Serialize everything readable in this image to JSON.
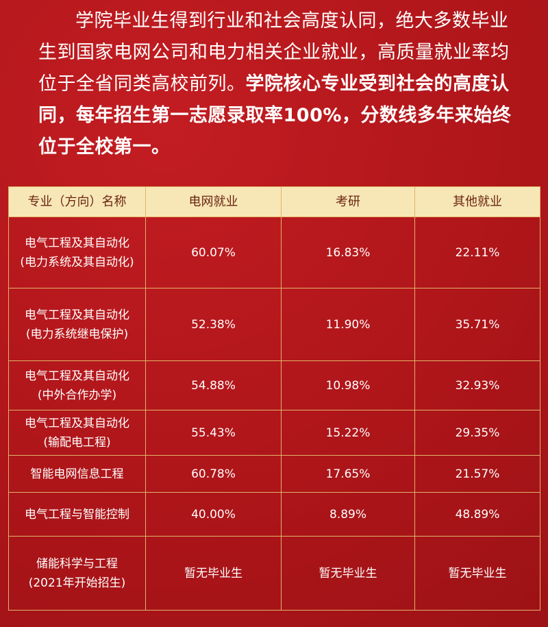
{
  "paragraph": {
    "normal": "学院毕业生得到行业和社会高度认同，绝大多数毕业生到国家电网公司和电力相关企业就业，高质量就业率均位于全省同类高校前列。",
    "bold": "学院核心专业受到社会的高度认同，每年招生第一志愿录取率100%，分数线多年来始终位于全校第一。"
  },
  "table": {
    "header": [
      "专业（方向）名称",
      "电网就业",
      "考研",
      "其他就业"
    ],
    "rows": [
      [
        [
          "电气工程及其自动化",
          "(电力系统及其自动化)"
        ],
        "60.07%",
        "16.83%",
        "22.11%"
      ],
      [
        [
          "电气工程及其自动化",
          "(电力系统继电保护)"
        ],
        "52.38%",
        "11.90%",
        "35.71%"
      ],
      [
        [
          "电气工程及其自动化",
          "(中外合作办学)"
        ],
        "54.88%",
        "10.98%",
        "32.93%"
      ],
      [
        [
          "电气工程及其自动化",
          "(输配电工程)"
        ],
        "55.43%",
        "15.22%",
        "29.35%"
      ],
      [
        [
          "智能电网信息工程"
        ],
        "60.78%",
        "17.65%",
        "21.57%"
      ],
      [
        [
          "电气工程与智能控制"
        ],
        "40.00%",
        "8.89%",
        "48.89%"
      ],
      [
        [
          "储能科学与工程",
          "(2021年开始招生)"
        ],
        "暂无毕业生",
        "暂无毕业生",
        "暂无毕业生"
      ]
    ]
  }
}
